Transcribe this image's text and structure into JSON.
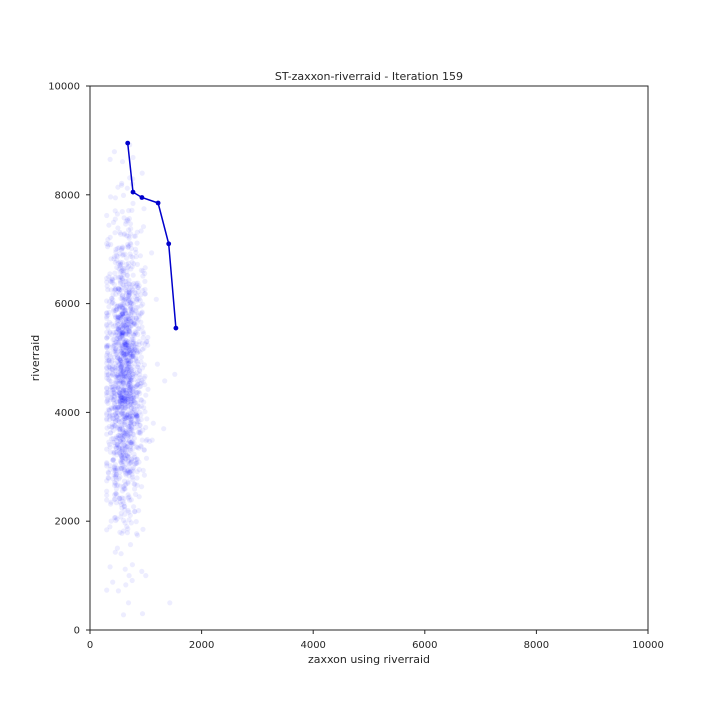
{
  "chart_data": {
    "type": "scatter",
    "title": "ST-zaxxon-riverraid - Iteration 159",
    "xlabel": "zaxxon using riverraid",
    "ylabel": "riverraid",
    "xlim": [
      0,
      10000
    ],
    "ylim": [
      0,
      10000
    ],
    "x_ticks": [
      "0",
      "2000",
      "4000",
      "6000",
      "8000",
      "10000"
    ],
    "y_ticks": [
      "0",
      "2000",
      "4000",
      "6000",
      "8000",
      "10000"
    ],
    "grid": false,
    "colors": {
      "points": "#0000ff",
      "frontier": "#0000cc"
    },
    "cloud": {
      "description_note": "",
      "count": 1500,
      "x_center": 620,
      "x_spread": 170,
      "x_min": 300,
      "x_max": 1600,
      "y_center": 4700,
      "y_spread": 1300,
      "y_min": 250,
      "y_max": 8950,
      "point_alpha": 0.07
    },
    "series": [
      {
        "type": "line",
        "x": [
          675,
          770,
          930,
          1220,
          1410,
          1540
        ],
        "y": [
          8950,
          8050,
          7950,
          7850,
          7100,
          5550
        ]
      }
    ],
    "outliers": {
      "x": [
        360,
        690,
        600,
        940,
        1430,
        700,
        1000,
        760,
        1320,
        1520
      ],
      "y": [
        8650,
        500,
        280,
        300,
        500,
        1000,
        1000,
        1200,
        3700,
        4700
      ]
    }
  }
}
